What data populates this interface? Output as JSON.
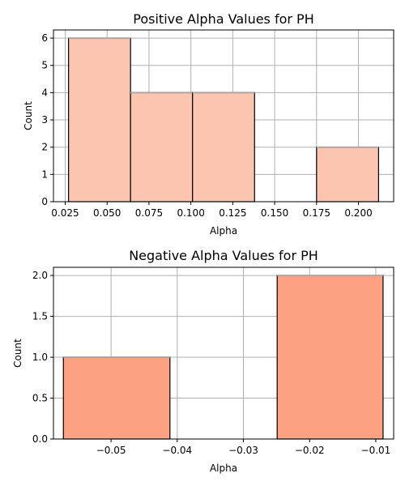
{
  "chart_data": [
    {
      "type": "bar",
      "title": "Positive Alpha Values for PH",
      "xlabel": "Alpha",
      "ylabel": "Count",
      "bins": [
        {
          "x0": 0.027,
          "x1": 0.064,
          "count": 6
        },
        {
          "x0": 0.064,
          "x1": 0.101,
          "count": 4
        },
        {
          "x0": 0.101,
          "x1": 0.138,
          "count": 4
        },
        {
          "x0": 0.138,
          "x1": 0.175,
          "count": 0
        },
        {
          "x0": 0.175,
          "x1": 0.212,
          "count": 2
        }
      ],
      "xlim": [
        0.018,
        0.221
      ],
      "ylim": [
        0,
        6.3
      ],
      "xticks": [
        0.025,
        0.05,
        0.075,
        0.1,
        0.125,
        0.15,
        0.175,
        0.2
      ],
      "xtick_labels": [
        "0.025",
        "0.050",
        "0.075",
        "0.100",
        "0.125",
        "0.150",
        "0.175",
        "0.200"
      ],
      "yticks": [
        0,
        1,
        2,
        3,
        4,
        5,
        6
      ],
      "ytick_labels": [
        "0",
        "1",
        "2",
        "3",
        "4",
        "5",
        "6"
      ],
      "grid": true,
      "bar_color": "#fcc5b0"
    },
    {
      "type": "bar",
      "title": "Negative Alpha Values for PH",
      "xlabel": "Alpha",
      "ylabel": "Count",
      "bins": [
        {
          "x0": -0.0572,
          "x1": -0.0411,
          "count": 1
        },
        {
          "x0": -0.0411,
          "x1": -0.0249,
          "count": 0
        },
        {
          "x0": -0.0249,
          "x1": -0.0089,
          "count": 2
        }
      ],
      "xlim": [
        -0.0587,
        -0.0073
      ],
      "ylim": [
        0,
        2.1
      ],
      "xticks": [
        -0.05,
        -0.04,
        -0.03,
        -0.02,
        -0.01
      ],
      "xtick_labels": [
        "−0.05",
        "−0.04",
        "−0.03",
        "−0.02",
        "−0.01"
      ],
      "yticks": [
        0,
        0.5,
        1,
        1.5,
        2
      ],
      "ytick_labels": [
        "0.0",
        "0.5",
        "1.0",
        "1.5",
        "2.0"
      ],
      "grid": true,
      "bar_color": "#fca283"
    }
  ]
}
